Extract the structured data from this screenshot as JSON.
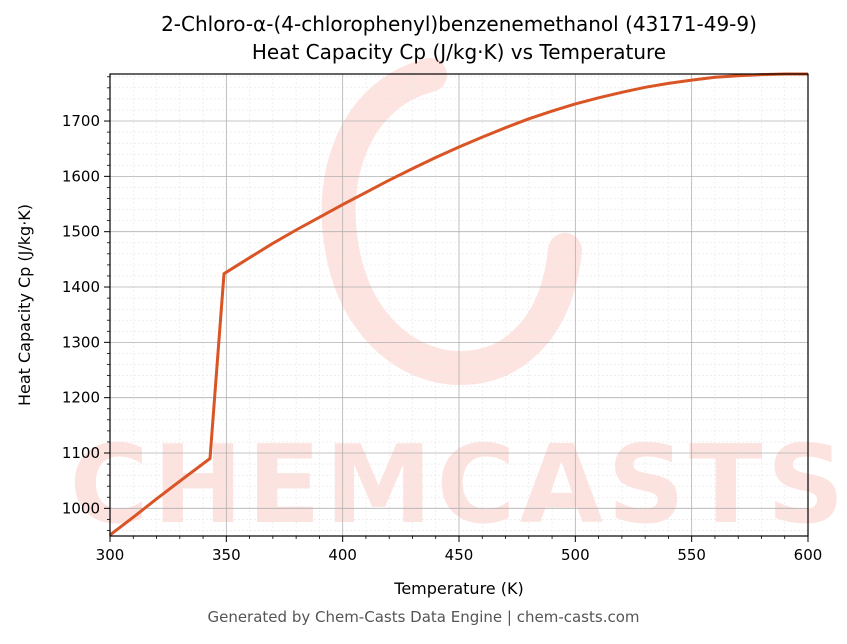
{
  "chart_data": {
    "type": "line",
    "title": "2-Chloro-α-(4-chlorophenyl)benzenemethanol (43171-49-9)",
    "subtitle": "Heat Capacity Cp (J/kg·K) vs Temperature",
    "xlabel": "Temperature (K)",
    "ylabel": "Heat Capacity Cp (J/kg·K)",
    "xlim": [
      300,
      600
    ],
    "ylim": [
      950,
      1785
    ],
    "x_ticks": [
      300,
      350,
      400,
      450,
      500,
      550,
      600
    ],
    "y_ticks": [
      1000,
      1100,
      1200,
      1300,
      1400,
      1500,
      1600,
      1700
    ],
    "grid": true,
    "line_color": "#d95525",
    "series": [
      {
        "x": [
          300,
          310,
          320,
          330,
          343,
          349,
          360,
          370,
          380,
          390,
          400,
          410,
          420,
          430,
          440,
          450,
          460,
          470,
          480,
          490,
          500,
          510,
          520,
          530,
          540,
          550,
          560,
          570,
          580,
          590,
          600
        ],
        "values": [
          952,
          984,
          1017,
          1049,
          1090,
          1424,
          1453,
          1479,
          1503,
          1526,
          1549,
          1571,
          1593,
          1614,
          1634,
          1653,
          1671,
          1688,
          1704,
          1718,
          1731,
          1742,
          1752,
          1761,
          1768,
          1774,
          1779,
          1782,
          1784,
          1785,
          1785
        ]
      }
    ],
    "watermark": "CHEMCASTS",
    "footer": "Generated by Chem-Casts Data Engine | chem-casts.com"
  }
}
